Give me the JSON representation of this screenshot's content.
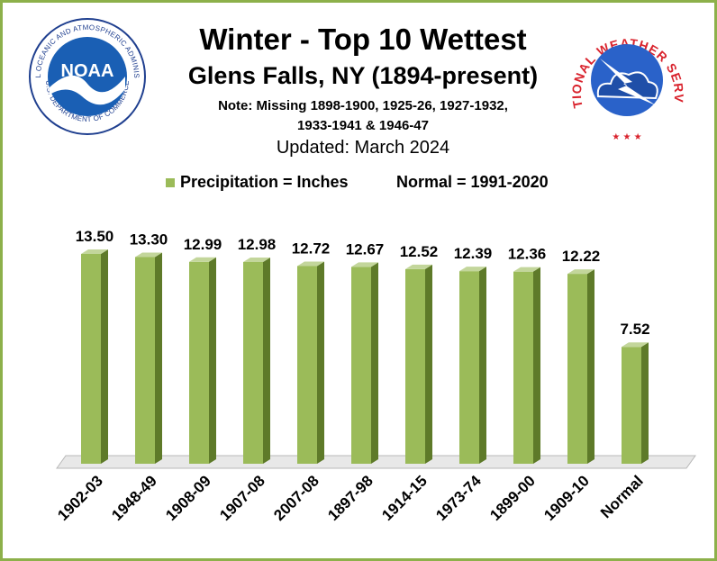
{
  "header": {
    "title": "Winter - Top 10 Wettest",
    "subtitle": "Glens Falls, NY (1894-present)",
    "note_line1": "Note: Missing 1898-1900, 1925-26, 1927-1932,",
    "note_line2": "1933-1941 & 1946-47",
    "updated": "Updated:  March 2024"
  },
  "legend": {
    "series_label": "Precipitation = Inches",
    "normal_label": "Normal = 1991-2020"
  },
  "logos": {
    "noaa_text": "NOAA",
    "noaa_ring_text": "NATIONAL OCEANIC AND ATMOSPHERIC ADMINISTRATION",
    "noaa_bottom_text": "U.S. DEPARTMENT OF COMMERCE",
    "nws_ring_text": "NATIONAL WEATHER SERVICE"
  },
  "colors": {
    "bar_front": "#9bbb59",
    "bar_side": "#5e7a29",
    "bar_top": "#c3d69b",
    "border": "#8db04a"
  },
  "chart_data": {
    "type": "bar",
    "categories": [
      "1902-03",
      "1948-49",
      "1908-09",
      "1907-08",
      "2007-08",
      "1897-98",
      "1914-15",
      "1973-74",
      "1899-00",
      "1909-10",
      "Normal"
    ],
    "values": [
      13.5,
      13.3,
      12.99,
      12.98,
      12.72,
      12.67,
      12.52,
      12.39,
      12.36,
      12.22,
      7.52
    ],
    "value_labels": [
      "13.50",
      "13.30",
      "12.99",
      "12.98",
      "12.72",
      "12.67",
      "12.52",
      "12.39",
      "12.36",
      "12.22",
      "7.52"
    ],
    "ylim": [
      0,
      13.5
    ]
  }
}
